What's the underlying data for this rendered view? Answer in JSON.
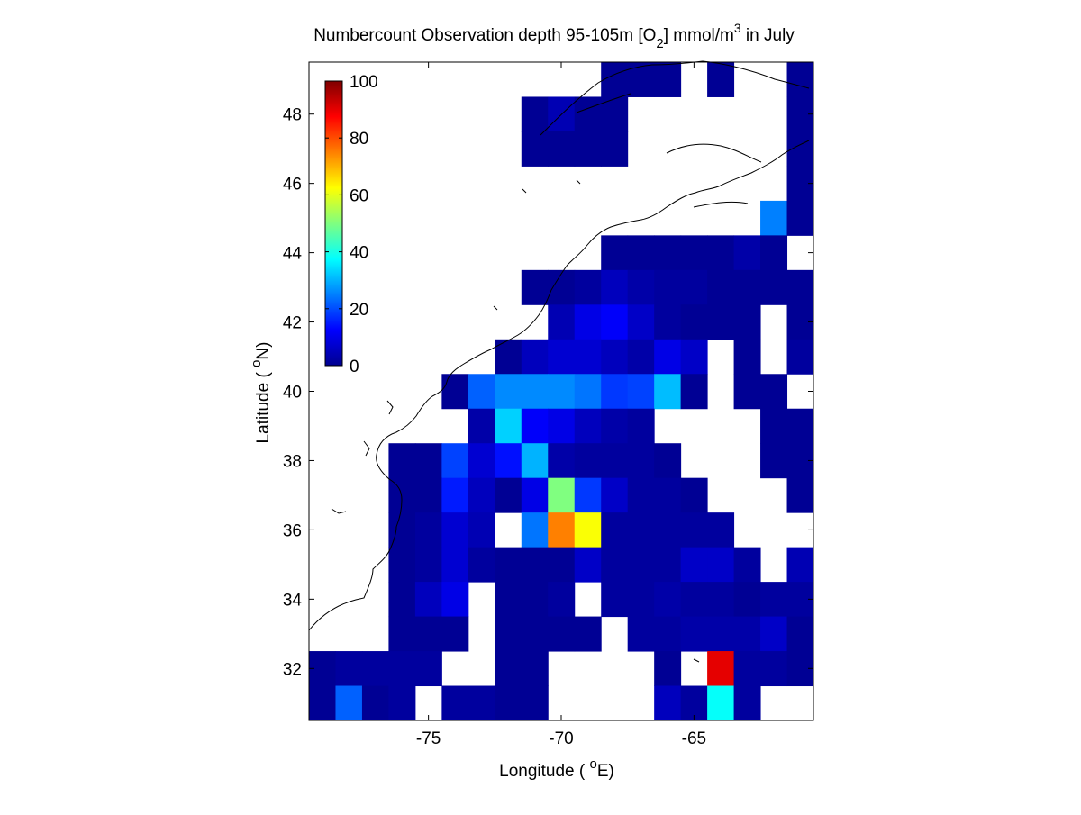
{
  "chart_data": {
    "type": "heatmap",
    "title": {
      "main": "Numbercount Observation depth 95-105m [O",
      "subscript": "2",
      "mid": "] mmol/m",
      "superscript": "3",
      "end": " in July"
    },
    "xlabel": {
      "prefix": "Longitude ( ",
      "degree": "o",
      "suffix": "E)"
    },
    "ylabel": {
      "prefix": "Latitude ( ",
      "degree": "o",
      "suffix": "N)"
    },
    "xlim": [
      -79.5,
      -60.5
    ],
    "ylim": [
      30.5,
      49.5
    ],
    "xticks": [
      -75,
      -70,
      -65
    ],
    "xtick_labels": [
      "-75",
      "-70",
      "-65"
    ],
    "yticks": [
      32,
      34,
      36,
      38,
      40,
      42,
      44,
      46,
      48
    ],
    "ytick_labels": [
      "32",
      "34",
      "36",
      "38",
      "40",
      "42",
      "44",
      "46",
      "48"
    ],
    "colormap": "jet",
    "clim": [
      0,
      100
    ],
    "colorbar": {
      "ticks": [
        0,
        20,
        40,
        60,
        80,
        100
      ],
      "tick_labels": [
        "0",
        "20",
        "40",
        "60",
        "80",
        "100"
      ],
      "placement": "inside-top-left"
    },
    "grid": false,
    "cell_size_deg": {
      "lon": 1,
      "lat": 1
    },
    "columns_lon_start": [
      -79.5,
      -78.5,
      -77.5,
      -76.5,
      -75.5,
      -74.5,
      -73.5,
      -72.5,
      -71.5,
      -70.5,
      -69.5,
      -68.5,
      -67.5,
      -66.5,
      -65.5,
      -64.5,
      -63.5,
      -62.5,
      -61.5
    ],
    "rows_lat_top": [
      49.5,
      48.5,
      47.5,
      46.5,
      45.5,
      44.5,
      43.5,
      42.5,
      41.5,
      40.5,
      39.5,
      38.5,
      37.5,
      36.5,
      35.5,
      34.5,
      33.5,
      32.5,
      31.5
    ],
    "values": [
      [
        null,
        null,
        null,
        null,
        null,
        null,
        null,
        null,
        null,
        null,
        null,
        2,
        2,
        2,
        null,
        2,
        null,
        null,
        2
      ],
      [
        null,
        null,
        null,
        null,
        null,
        null,
        null,
        null,
        2,
        5,
        2,
        2,
        null,
        null,
        null,
        null,
        null,
        null,
        2
      ],
      [
        null,
        null,
        null,
        null,
        null,
        null,
        null,
        null,
        2,
        2,
        2,
        2,
        null,
        null,
        null,
        null,
        null,
        null,
        2
      ],
      [
        null,
        null,
        null,
        null,
        null,
        null,
        null,
        null,
        null,
        null,
        null,
        null,
        null,
        null,
        null,
        null,
        null,
        null,
        2
      ],
      [
        null,
        null,
        null,
        null,
        null,
        null,
        null,
        null,
        null,
        null,
        null,
        null,
        null,
        null,
        null,
        null,
        null,
        25,
        2
      ],
      [
        null,
        null,
        null,
        null,
        null,
        null,
        null,
        null,
        null,
        null,
        null,
        2,
        2,
        2,
        2,
        2,
        4,
        2,
        null
      ],
      [
        null,
        null,
        null,
        null,
        null,
        null,
        null,
        null,
        2,
        2,
        3,
        6,
        4,
        3,
        3,
        2,
        2,
        2,
        2
      ],
      [
        null,
        null,
        null,
        null,
        null,
        null,
        null,
        null,
        null,
        5,
        10,
        12,
        7,
        3,
        2,
        2,
        2,
        null,
        2
      ],
      [
        null,
        null,
        null,
        null,
        null,
        null,
        null,
        2,
        6,
        8,
        8,
        6,
        4,
        10,
        7,
        null,
        2,
        null,
        3
      ],
      [
        null,
        null,
        null,
        null,
        null,
        2,
        22,
        26,
        26,
        26,
        24,
        18,
        19,
        31,
        2,
        null,
        2,
        2,
        null
      ],
      [
        null,
        null,
        null,
        null,
        null,
        null,
        4,
        33,
        12,
        10,
        6,
        4,
        3,
        null,
        null,
        null,
        null,
        2,
        2
      ],
      [
        null,
        null,
        null,
        2,
        2,
        19,
        8,
        14,
        30,
        4,
        3,
        3,
        3,
        2,
        null,
        null,
        null,
        2,
        2
      ],
      [
        null,
        null,
        null,
        2,
        2,
        15,
        6,
        2,
        10,
        50,
        18,
        7,
        3,
        3,
        2,
        null,
        null,
        null,
        2
      ],
      [
        null,
        null,
        null,
        2,
        3,
        8,
        5,
        null,
        24,
        75,
        62,
        3,
        3,
        3,
        3,
        3,
        null,
        null,
        null
      ],
      [
        null,
        null,
        null,
        2,
        3,
        8,
        3,
        2,
        2,
        2,
        7,
        3,
        3,
        3,
        7,
        7,
        3,
        null,
        5
      ],
      [
        null,
        null,
        null,
        2,
        6,
        10,
        null,
        2,
        2,
        3,
        null,
        3,
        3,
        4,
        3,
        3,
        2,
        3,
        3
      ],
      [
        null,
        null,
        null,
        2,
        2,
        2,
        null,
        2,
        2,
        2,
        2,
        null,
        3,
        3,
        4,
        4,
        4,
        7,
        2
      ],
      [
        2,
        3,
        3,
        3,
        3,
        null,
        null,
        2,
        2,
        null,
        null,
        null,
        null,
        2,
        null,
        90,
        3,
        3,
        2
      ],
      [
        2,
        22,
        2,
        3,
        null,
        3,
        3,
        2,
        2,
        null,
        null,
        null,
        null,
        6,
        3,
        38,
        3,
        null,
        null
      ]
    ],
    "bottom_partial_row": {
      "lat_top": 30.5,
      "values": [
        3,
        3,
        2,
        null,
        null,
        null,
        null,
        null,
        null,
        null,
        null,
        null,
        null,
        null,
        null,
        null,
        null,
        3,
        null
      ]
    }
  }
}
